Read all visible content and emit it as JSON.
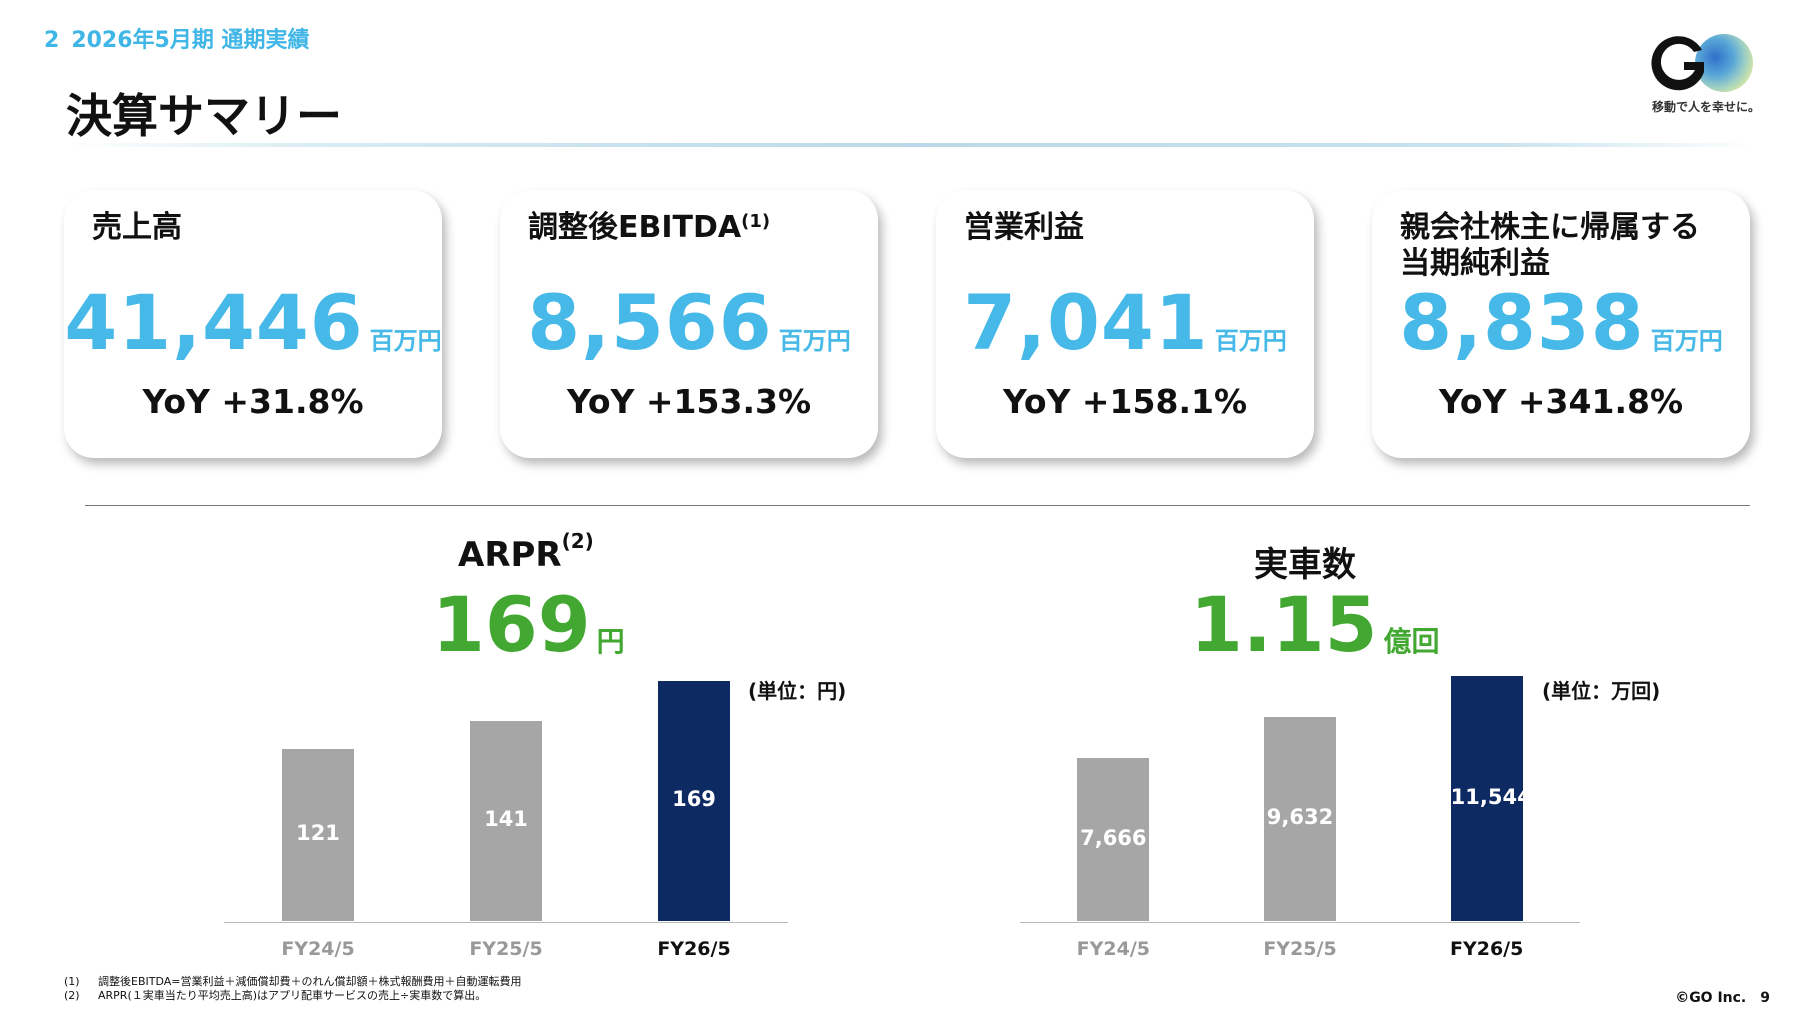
{
  "header": {
    "section_number": "2",
    "section_title": "2026年5月期 通期実績",
    "page_title": "決算サマリー"
  },
  "logo": {
    "mark_text": "GO",
    "tagline": "移動で人を幸せに。"
  },
  "colors": {
    "accent_blue": "#46b9e8",
    "accent_green": "#42a832",
    "bar_grey": "#a6a6a6",
    "bar_navy": "#0d2a63"
  },
  "kpis": [
    {
      "label": "売上高",
      "sup": "",
      "value": "41,446",
      "unit": "百万円",
      "yoy": "YoY +31.8%"
    },
    {
      "label": "調整後EBITDA",
      "sup": "(1)",
      "value": "8,566",
      "unit": "百万円",
      "yoy": "YoY +153.3%"
    },
    {
      "label": "営業利益",
      "sup": "",
      "value": "7,041",
      "unit": "百万円",
      "yoy": "YoY +158.1%"
    },
    {
      "label": "親会社株主に帰属する\n当期純利益",
      "sup": "",
      "value": "8,838",
      "unit": "百万円",
      "yoy": "YoY +341.8%"
    }
  ],
  "chart_data": [
    {
      "type": "bar",
      "title": "ARPR",
      "title_sup": "(2)",
      "headline_value": "169",
      "headline_unit": "円",
      "unit_note": "(単位：円)",
      "categories": [
        "FY24/5",
        "FY25/5",
        "FY26/5"
      ],
      "values": [
        121,
        141,
        169
      ],
      "value_labels": [
        "121",
        "141",
        "169"
      ],
      "highlight_index": 2,
      "ylim": [
        0,
        169
      ]
    },
    {
      "type": "bar",
      "title": "実車数",
      "title_sup": "",
      "headline_value": "1.15",
      "headline_unit": "億回",
      "unit_note": "(単位：万回)",
      "categories": [
        "FY24/5",
        "FY25/5",
        "FY26/5"
      ],
      "values": [
        7666,
        9632,
        11544
      ],
      "value_labels": [
        "7,666",
        "9,632",
        "11,544"
      ],
      "highlight_index": 2,
      "ylim": [
        0,
        11544
      ]
    }
  ],
  "footnotes": [
    {
      "mark": "(1)",
      "text": "調整後EBITDA=営業利益＋減価償却費＋のれん償却額＋株式報酬費用＋自動運転費用"
    },
    {
      "mark": "(2)",
      "text": "ARPR(１実車当たり平均売上高)はアプリ配車サービスの売上÷実車数で算出。"
    }
  ],
  "footer": {
    "copyright": "©GO Inc.",
    "page_number": "9"
  }
}
